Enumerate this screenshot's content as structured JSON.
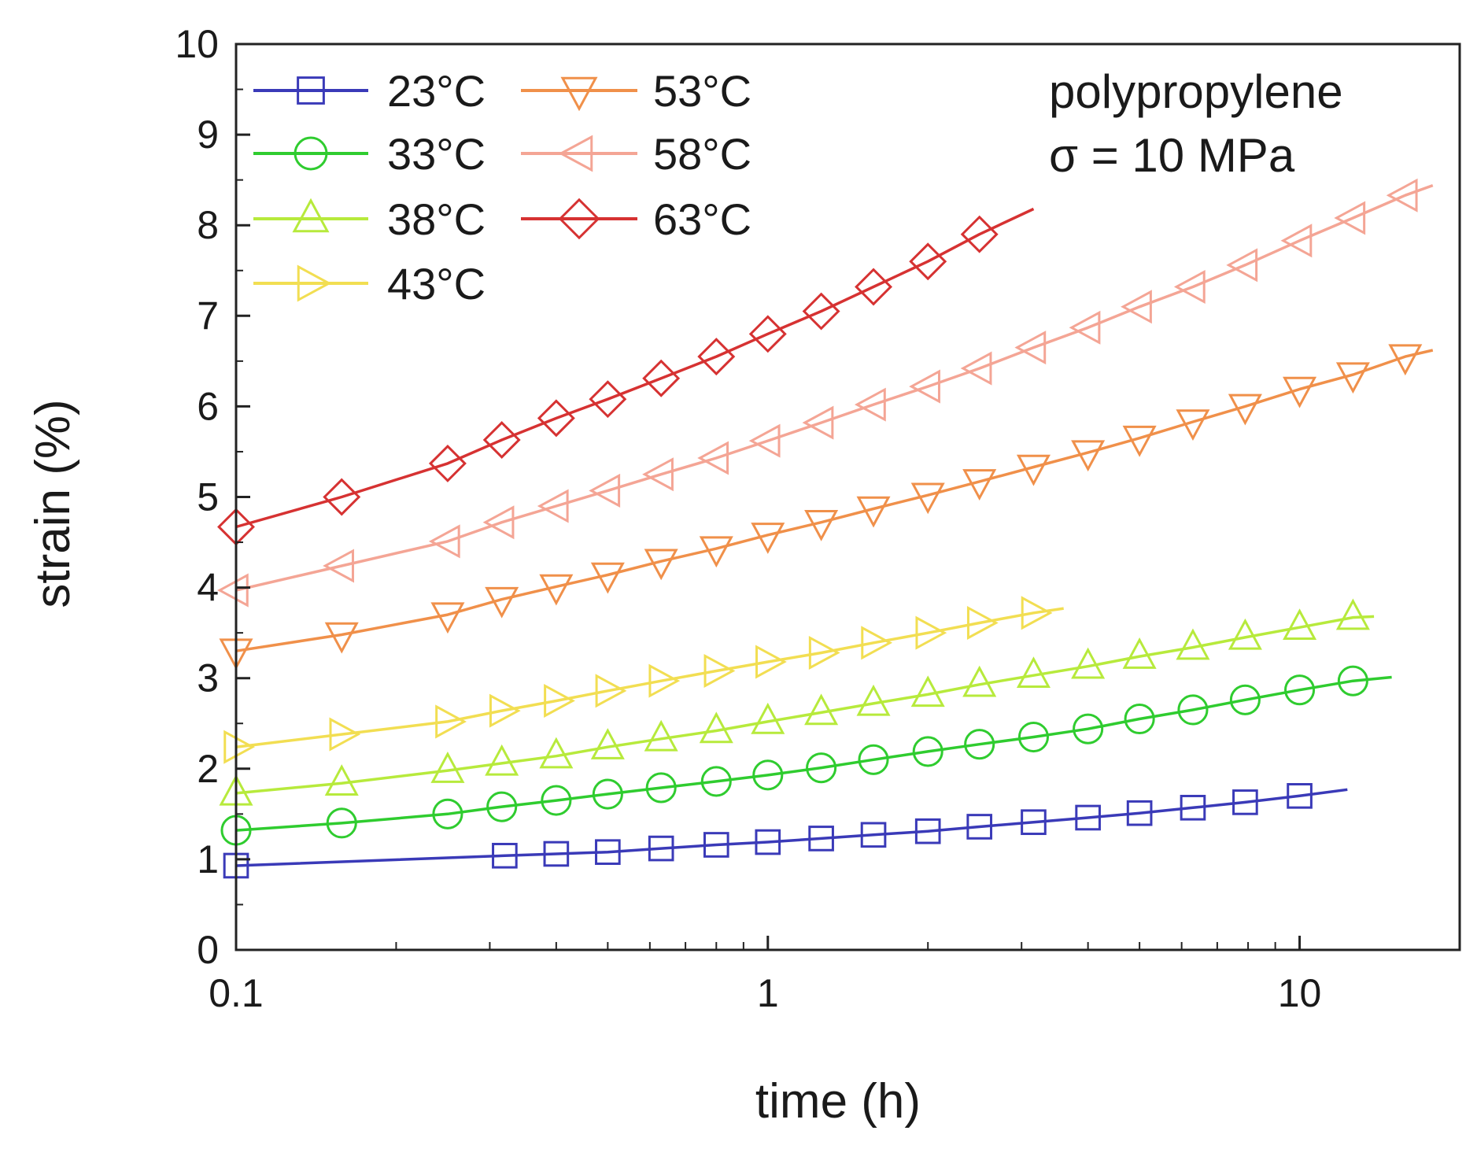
{
  "chart_data": {
    "type": "line",
    "xlabel": "time (h)",
    "ylabel": "strain (%)",
    "x_scale": "log",
    "xlim": [
      0.1,
      20
    ],
    "ylim": [
      0,
      10
    ],
    "x_ticks": [
      0.1,
      1,
      10
    ],
    "x_tick_labels": [
      "0.1",
      "1",
      "10"
    ],
    "y_ticks": [
      0,
      1,
      2,
      3,
      4,
      5,
      6,
      7,
      8,
      9,
      10
    ],
    "y_tick_labels": [
      "0",
      "1",
      "2",
      "3",
      "4",
      "5",
      "6",
      "7",
      "8",
      "9",
      "10"
    ],
    "grid": false,
    "legend_position": "top-left",
    "annotations": [
      "polypropylene",
      "σ = 10 MPa"
    ],
    "series": [
      {
        "name": "23°C",
        "color": "#3a3ab8",
        "marker": "square",
        "x": [
          0.1,
          0.32,
          0.4,
          0.5,
          0.63,
          0.8,
          1.0,
          1.26,
          1.58,
          2.0,
          2.5,
          3.16,
          4.0,
          5.0,
          6.3,
          7.9,
          10.0
        ],
        "y": [
          0.93,
          1.04,
          1.06,
          1.08,
          1.12,
          1.16,
          1.19,
          1.23,
          1.27,
          1.31,
          1.36,
          1.41,
          1.46,
          1.51,
          1.57,
          1.63,
          1.7
        ],
        "line_end": [
          12.3,
          1.77
        ]
      },
      {
        "name": "33°C",
        "color": "#2fcc2f",
        "marker": "circle",
        "x": [
          0.1,
          0.158,
          0.25,
          0.316,
          0.4,
          0.5,
          0.63,
          0.8,
          1.0,
          1.26,
          1.58,
          2.0,
          2.5,
          3.16,
          4.0,
          5.0,
          6.3,
          7.9,
          10.0,
          12.6
        ],
        "y": [
          1.32,
          1.4,
          1.5,
          1.58,
          1.65,
          1.72,
          1.79,
          1.86,
          1.93,
          2.01,
          2.1,
          2.19,
          2.27,
          2.35,
          2.44,
          2.55,
          2.65,
          2.76,
          2.87,
          2.97
        ],
        "line_end": [
          14.9,
          3.01
        ]
      },
      {
        "name": "38°C",
        "color": "#b7ea3c",
        "marker": "triangle-up",
        "x": [
          0.1,
          0.158,
          0.25,
          0.316,
          0.4,
          0.5,
          0.63,
          0.8,
          1.0,
          1.26,
          1.58,
          2.0,
          2.5,
          3.16,
          4.0,
          5.0,
          6.3,
          7.9,
          10.0,
          12.6
        ],
        "y": [
          1.73,
          1.84,
          1.98,
          2.06,
          2.14,
          2.24,
          2.33,
          2.42,
          2.52,
          2.62,
          2.72,
          2.82,
          2.93,
          3.03,
          3.13,
          3.24,
          3.34,
          3.45,
          3.56,
          3.67
        ],
        "line_end": [
          13.8,
          3.68
        ]
      },
      {
        "name": "43°C",
        "color": "#f2de52",
        "marker": "triangle-right",
        "x": [
          0.1,
          0.158,
          0.25,
          0.316,
          0.4,
          0.5,
          0.63,
          0.8,
          1.0,
          1.26,
          1.58,
          2.0,
          2.5,
          3.16
        ],
        "y": [
          2.24,
          2.38,
          2.52,
          2.64,
          2.75,
          2.86,
          2.97,
          3.08,
          3.18,
          3.28,
          3.39,
          3.5,
          3.61,
          3.72
        ],
        "line_end": [
          3.6,
          3.77
        ]
      },
      {
        "name": "53°C",
        "color": "#f0904a",
        "marker": "triangle-down",
        "x": [
          0.1,
          0.158,
          0.25,
          0.316,
          0.4,
          0.5,
          0.63,
          0.8,
          1.0,
          1.26,
          1.58,
          2.0,
          2.5,
          3.16,
          4.0,
          5.0,
          6.3,
          7.9,
          10.0,
          12.6,
          15.8
        ],
        "y": [
          3.3,
          3.48,
          3.7,
          3.87,
          4.01,
          4.14,
          4.29,
          4.43,
          4.58,
          4.72,
          4.87,
          5.02,
          5.17,
          5.33,
          5.49,
          5.65,
          5.83,
          6.0,
          6.19,
          6.35,
          6.55
        ],
        "line_end": [
          17.8,
          6.62
        ]
      },
      {
        "name": "58°C",
        "color": "#f4a595",
        "marker": "triangle-left",
        "x": [
          0.1,
          0.158,
          0.25,
          0.316,
          0.4,
          0.5,
          0.63,
          0.8,
          1.0,
          1.26,
          1.58,
          2.0,
          2.5,
          3.16,
          4.0,
          5.0,
          6.3,
          7.9,
          10.0,
          12.6,
          15.8
        ],
        "y": [
          3.97,
          4.24,
          4.51,
          4.72,
          4.9,
          5.07,
          5.25,
          5.43,
          5.62,
          5.82,
          6.02,
          6.22,
          6.42,
          6.65,
          6.87,
          7.1,
          7.32,
          7.56,
          7.83,
          8.08,
          8.33
        ],
        "line_end": [
          17.8,
          8.44
        ]
      },
      {
        "name": "63°C",
        "color": "#d63232",
        "marker": "diamond",
        "x": [
          0.1,
          0.158,
          0.25,
          0.316,
          0.4,
          0.5,
          0.63,
          0.8,
          1.0,
          1.26,
          1.58,
          2.0,
          2.5
        ],
        "y": [
          4.67,
          5.0,
          5.37,
          5.63,
          5.87,
          6.08,
          6.31,
          6.55,
          6.8,
          7.05,
          7.32,
          7.6,
          7.9
        ],
        "line_end": [
          3.16,
          8.18
        ]
      }
    ]
  }
}
